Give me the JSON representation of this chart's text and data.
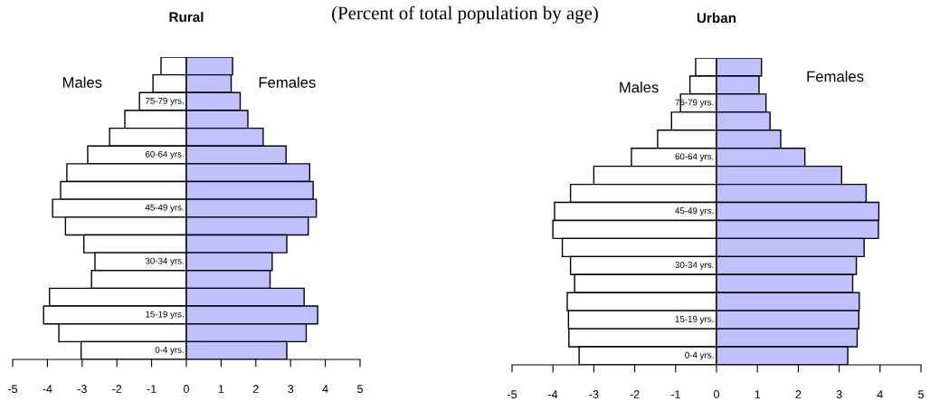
{
  "chart_data": [
    {
      "type": "bar",
      "title": "Rural",
      "orientation": "horizontal",
      "stacked": true,
      "annotations": [
        "(Percent of total population by age)"
      ],
      "categories": [
        null,
        null,
        "75-79 yrs.",
        null,
        null,
        "60-64 yrs.",
        null,
        null,
        "45-49 yrs.",
        null,
        null,
        "30-34 yrs.",
        null,
        null,
        "15-19 yrs.",
        null,
        "0-4 yrs."
      ],
      "series": [
        {
          "name": "Males",
          "color": "#ffffff",
          "values": [
            -0.73,
            -0.96,
            -1.35,
            -1.77,
            -2.21,
            -2.84,
            -3.44,
            -3.62,
            -3.85,
            -3.48,
            -2.95,
            -2.63,
            -2.73,
            -3.94,
            -4.11,
            -3.67,
            -3.03
          ]
        },
        {
          "name": "Females",
          "color": "#c0c0ff",
          "values": [
            1.33,
            1.29,
            1.55,
            1.77,
            2.21,
            2.87,
            3.55,
            3.65,
            3.74,
            3.51,
            2.89,
            2.47,
            2.41,
            3.39,
            3.78,
            3.45,
            2.89
          ]
        }
      ],
      "xlim": [
        -5,
        5
      ],
      "xticks": [
        -5,
        -4,
        -3,
        -2,
        -1,
        0,
        1,
        2,
        3,
        4,
        5
      ],
      "grid": false,
      "legend": false
    },
    {
      "type": "bar",
      "title": "Urban",
      "orientation": "horizontal",
      "stacked": true,
      "categories": [
        null,
        null,
        "75-79 yrs.",
        null,
        null,
        "60-64 yrs.",
        null,
        null,
        "45-49 yrs.",
        null,
        null,
        "30-34 yrs.",
        null,
        null,
        "15-19 yrs.",
        null,
        "0-4 yrs."
      ],
      "series": [
        {
          "name": "Males",
          "color": "#ffffff",
          "values": [
            -0.51,
            -0.65,
            -0.88,
            -1.1,
            -1.44,
            -2.08,
            -3.0,
            -3.57,
            -3.96,
            -4.0,
            -3.77,
            -3.57,
            -3.47,
            -3.65,
            -3.62,
            -3.61,
            -3.36
          ]
        },
        {
          "name": "Females",
          "color": "#c0c0ff",
          "values": [
            1.1,
            1.04,
            1.21,
            1.31,
            1.57,
            2.16,
            3.06,
            3.66,
            3.97,
            3.96,
            3.61,
            3.42,
            3.33,
            3.49,
            3.48,
            3.44,
            3.21
          ]
        }
      ],
      "xlim": [
        -5,
        5
      ],
      "xticks": [
        -5,
        -4,
        -3,
        -2,
        -1,
        0,
        1,
        2,
        3,
        4,
        5
      ],
      "grid": false,
      "legend": false
    }
  ]
}
